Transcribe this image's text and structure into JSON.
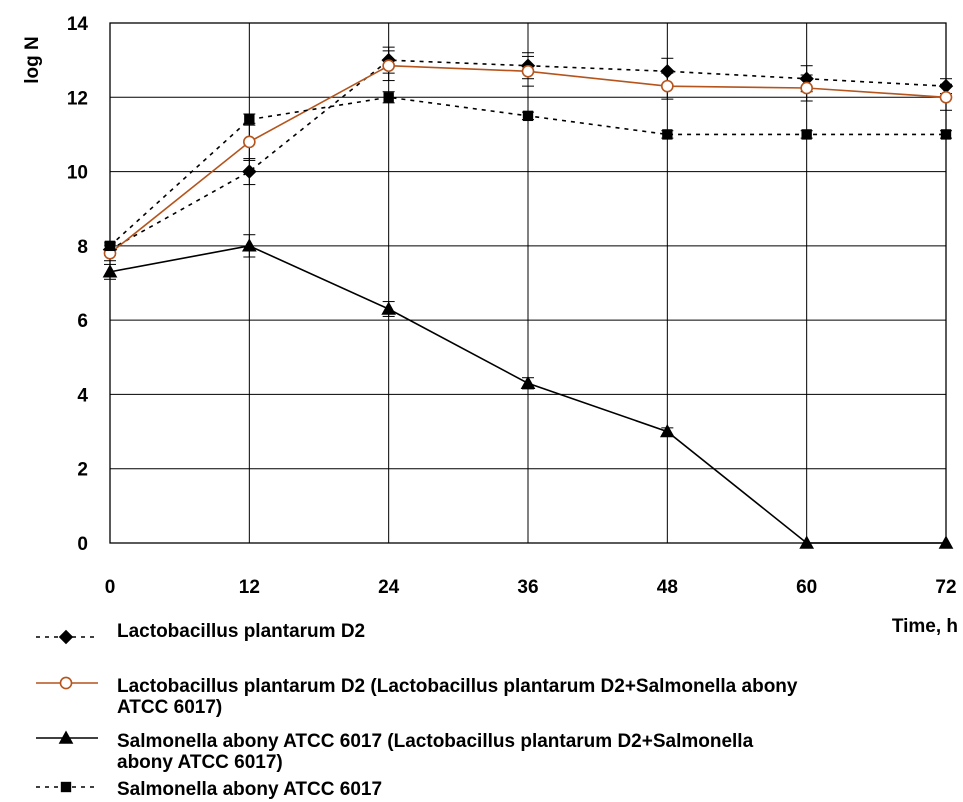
{
  "chart_data": {
    "type": "line",
    "title": "",
    "xlabel": "Time, h",
    "ylabel": "log N",
    "x": [
      0,
      12,
      24,
      36,
      48,
      60,
      72
    ],
    "xlim": [
      0,
      72
    ],
    "ylim": [
      0,
      14
    ],
    "xticks": [
      "0",
      "12",
      "24",
      "36",
      "48",
      "60",
      "72"
    ],
    "yticks": [
      "0",
      "2",
      "4",
      "6",
      "8",
      "10",
      "12",
      "14"
    ],
    "grid": true,
    "legend_position": "bottom",
    "series": [
      {
        "name": "Lactobacillus plantarum D2",
        "values": [
          7.9,
          10.0,
          13.0,
          12.85,
          12.7,
          12.5,
          12.3
        ],
        "error": [
          0.15,
          0.35,
          0.35,
          0.35,
          0.35,
          0.35,
          0.2
        ],
        "color": "#000000",
        "dash": "dotted",
        "marker": "diamond"
      },
      {
        "name": "Lactobacillus plantarum D2 (Lactobacillus plantarum D2+Salmonella abony ATCC 6017)",
        "name_lines": [
          "Lactobacillus plantarum D2 (Lactobacillus plantarum D2+Salmonella abony",
          "ATCC 6017)"
        ],
        "values": [
          7.8,
          10.8,
          12.85,
          12.7,
          12.3,
          12.25,
          12.0
        ],
        "error": [
          0.2,
          0.5,
          0.4,
          0.4,
          0.35,
          0.35,
          0.35
        ],
        "color": "#b5541c",
        "dash": "solid",
        "marker": "circle"
      },
      {
        "name": "Salmonella abony ATCC 6017 (Lactobacillus plantarum D2+Salmonella abony ATCC 6017)",
        "name_lines": [
          "Salmonella abony ATCC 6017 (Lactobacillus plantarum D2+Salmonella",
          "abony ATCC 6017)"
        ],
        "values": [
          7.3,
          8.0,
          6.3,
          4.3,
          3.0,
          0.0,
          0.0
        ],
        "error": [
          0.2,
          0.3,
          0.2,
          0.15,
          0.1,
          0.0,
          0.0
        ],
        "color": "#000000",
        "dash": "solid",
        "marker": "triangle"
      },
      {
        "name": "Salmonella abony ATCC 6017",
        "values": [
          8.0,
          11.4,
          12.0,
          11.5,
          11.0,
          11.0,
          11.0
        ],
        "error": [
          0.1,
          0.15,
          0.15,
          0.1,
          0.1,
          0.1,
          0.1
        ],
        "color": "#000000",
        "dash": "dotted",
        "marker": "square"
      }
    ]
  }
}
